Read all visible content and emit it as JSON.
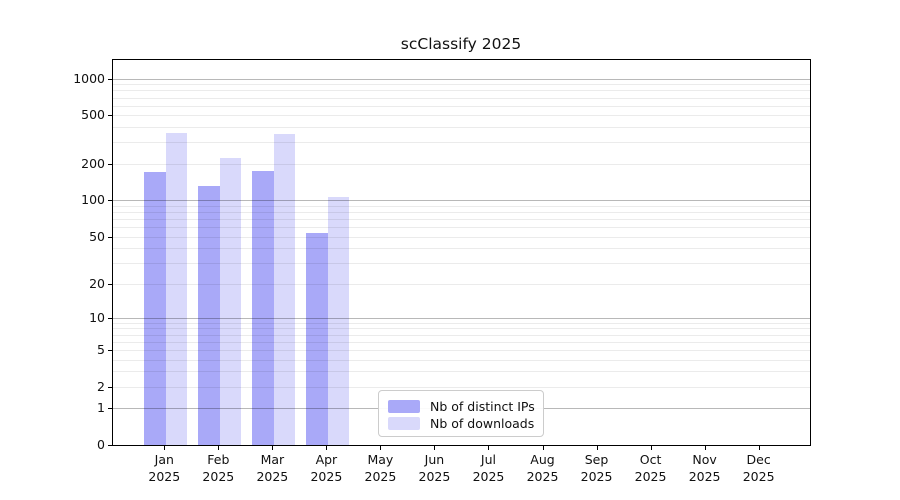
{
  "chart_data": {
    "type": "bar",
    "title": "scClassify 2025",
    "categories": [
      "Jan",
      "Feb",
      "Mar",
      "Apr",
      "May",
      "Jun",
      "Jul",
      "Aug",
      "Sep",
      "Oct",
      "Nov",
      "Dec"
    ],
    "year_label": "2025",
    "series": [
      {
        "name": "Nb of distinct IPs",
        "color": "#a9a9f8",
        "values": [
          171,
          130,
          174,
          54,
          null,
          null,
          null,
          null,
          null,
          null,
          null,
          null
        ]
      },
      {
        "name": "Nb of downloads",
        "color": "#d9d9fb",
        "values": [
          357,
          224,
          353,
          107,
          null,
          null,
          null,
          null,
          null,
          null,
          null,
          null
        ]
      }
    ],
    "xlabel": "",
    "ylabel": "",
    "yscale": "log1p",
    "yticks": [
      0,
      1,
      2,
      5,
      10,
      20,
      50,
      100,
      200,
      500,
      1000
    ],
    "ytick_labels": [
      "0",
      "1",
      "2",
      "5",
      "10",
      "20",
      "50",
      "100",
      "200",
      "500",
      "1000"
    ],
    "ylim": [
      0,
      1425
    ],
    "grid": "major-and-minor, drawn over bars",
    "legend_position": "lower-center-left inside plot"
  }
}
